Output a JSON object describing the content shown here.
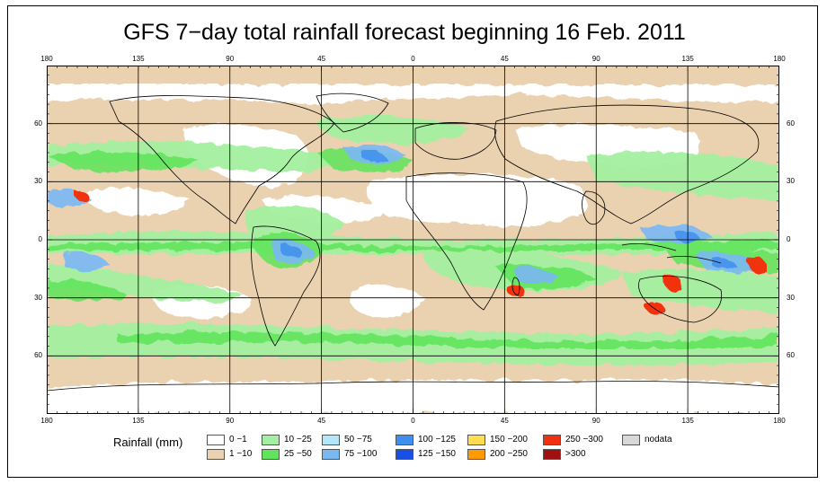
{
  "title": "GFS 7−day total rainfall forecast beginning 16 Feb. 2011",
  "axes": {
    "lon_labels": [
      "180",
      "135",
      "90",
      "45",
      "0",
      "45",
      "90",
      "135",
      "180"
    ],
    "lat_labels": [
      "60",
      "30",
      "0",
      "30",
      "60"
    ],
    "lon_values": [
      -180,
      -135,
      -90,
      -45,
      0,
      45,
      90,
      135,
      180
    ],
    "lat_values": [
      60,
      30,
      0,
      -30,
      -60
    ]
  },
  "legend": {
    "title": "Rainfall (mm)",
    "items": [
      {
        "label": "0 −1",
        "color": "#ffffff"
      },
      {
        "label": "1 −10",
        "color": "#ead2b0"
      },
      {
        "label": "10 −25",
        "color": "#a4f0a0"
      },
      {
        "label": "25 −50",
        "color": "#5fe45a"
      },
      {
        "label": "50 −75",
        "color": "#b4e6fa"
      },
      {
        "label": "75 −100",
        "color": "#7ab8f4"
      },
      {
        "label": "100 −125",
        "color": "#3f8ff0"
      },
      {
        "label": "125 −150",
        "color": "#1650e6"
      },
      {
        "label": "150 −200",
        "color": "#ffdc50"
      },
      {
        "label": "200 −250",
        "color": "#ff9a00"
      },
      {
        "label": "250 −300",
        "color": "#f03010"
      },
      {
        "label": ">300",
        "color": "#a01010"
      },
      {
        "label": "nodata",
        "color": "#d8d8d8"
      }
    ]
  },
  "colors": {
    "ocean_light": "#ead2b0",
    "land_dry": "#ffffff",
    "rain_light": "#a4f0a0",
    "rain_mod": "#5fe45a",
    "rain_blue1": "#b4e6fa",
    "rain_blue2": "#7ab8f4",
    "rain_blue3": "#3f8ff0",
    "rain_red": "#f03010"
  }
}
